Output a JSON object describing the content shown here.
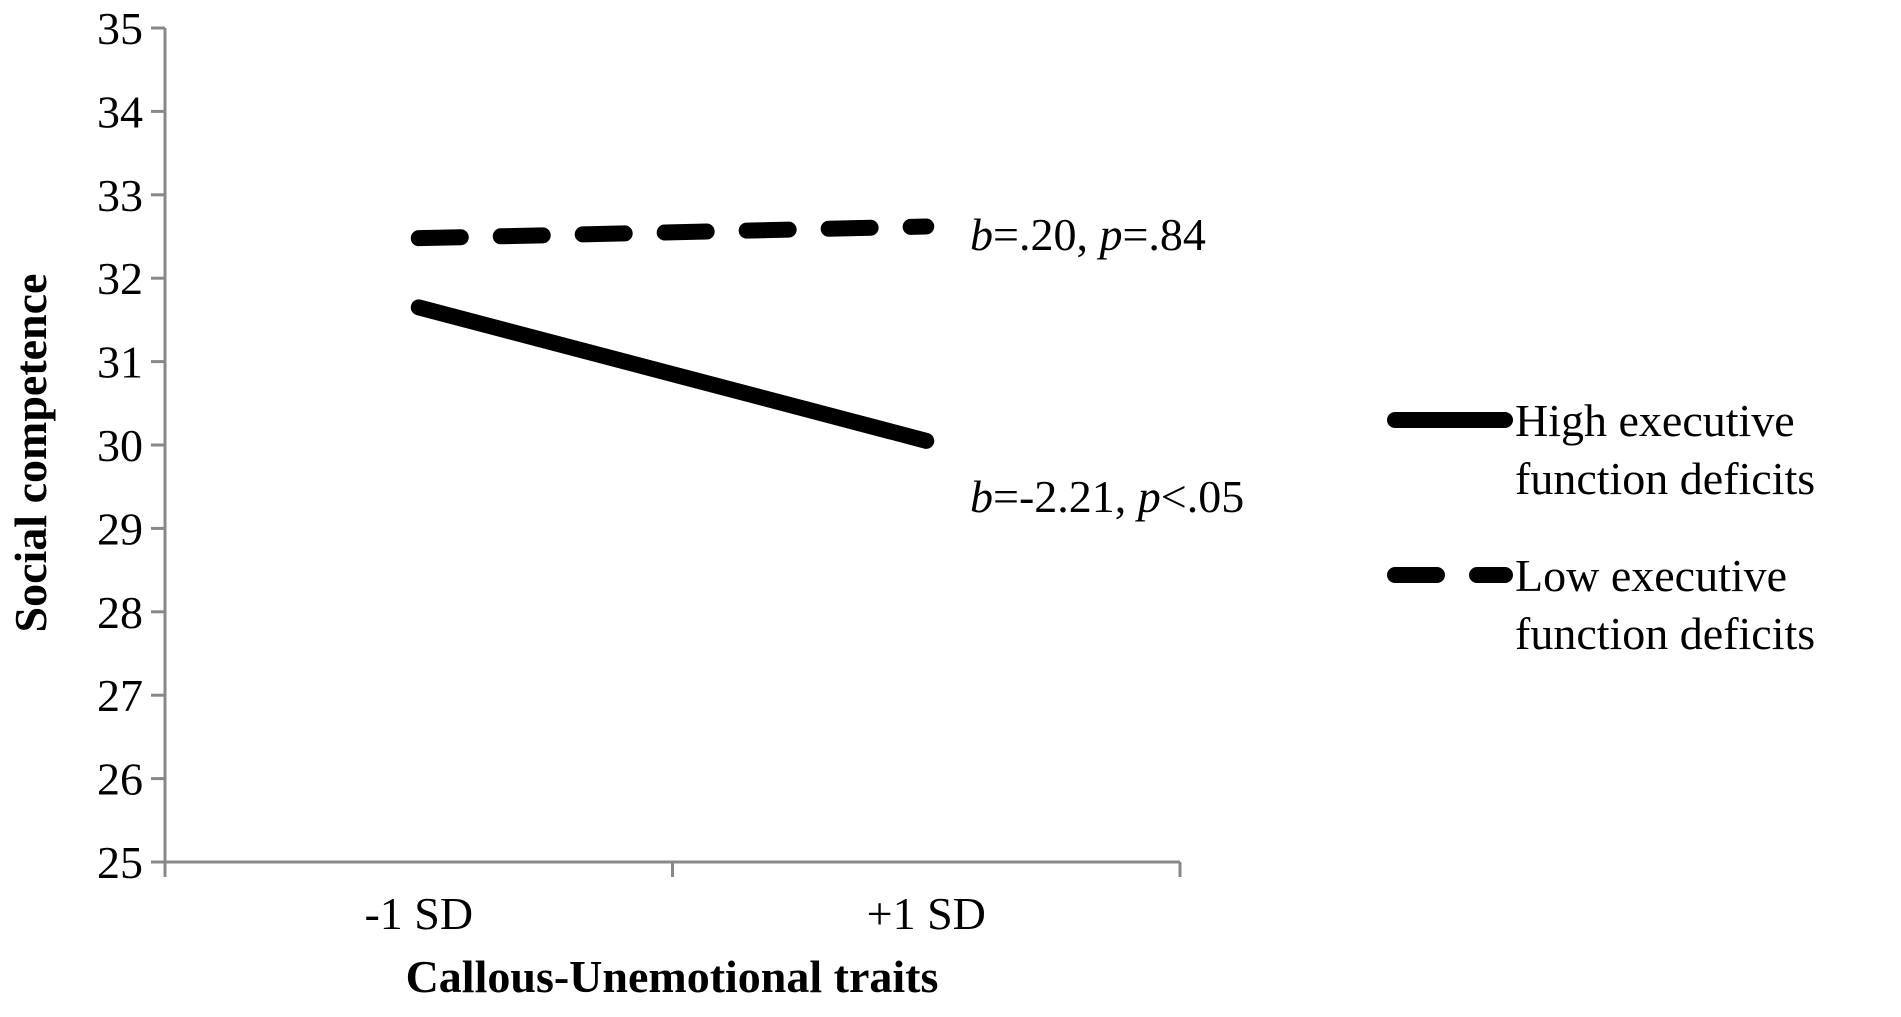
{
  "chart_data": {
    "type": "line",
    "title": "",
    "xlabel": "Callous-Unemotional traits",
    "ylabel": "Social competence",
    "categories": [
      "-1 SD",
      "+1 SD"
    ],
    "ylim": [
      25,
      35
    ],
    "yticks": [
      25,
      26,
      27,
      28,
      29,
      30,
      31,
      32,
      33,
      34,
      35
    ],
    "grid": false,
    "legend_position": "right",
    "series": [
      {
        "name": "High executive function deficits",
        "name_lines": [
          "High executive",
          "function deficits"
        ],
        "values": [
          31.65,
          30.05
        ],
        "style": "solid",
        "color": "#000000",
        "annotation": {
          "b": "=-2.21, ",
          "p": "<.05"
        }
      },
      {
        "name": "Low executive function deficits",
        "name_lines": [
          "Low executive",
          "function deficits"
        ],
        "values": [
          32.48,
          32.62
        ],
        "style": "dashed",
        "color": "#000000",
        "annotation": {
          "b": "=.20, ",
          "p": "=.84"
        }
      }
    ]
  }
}
